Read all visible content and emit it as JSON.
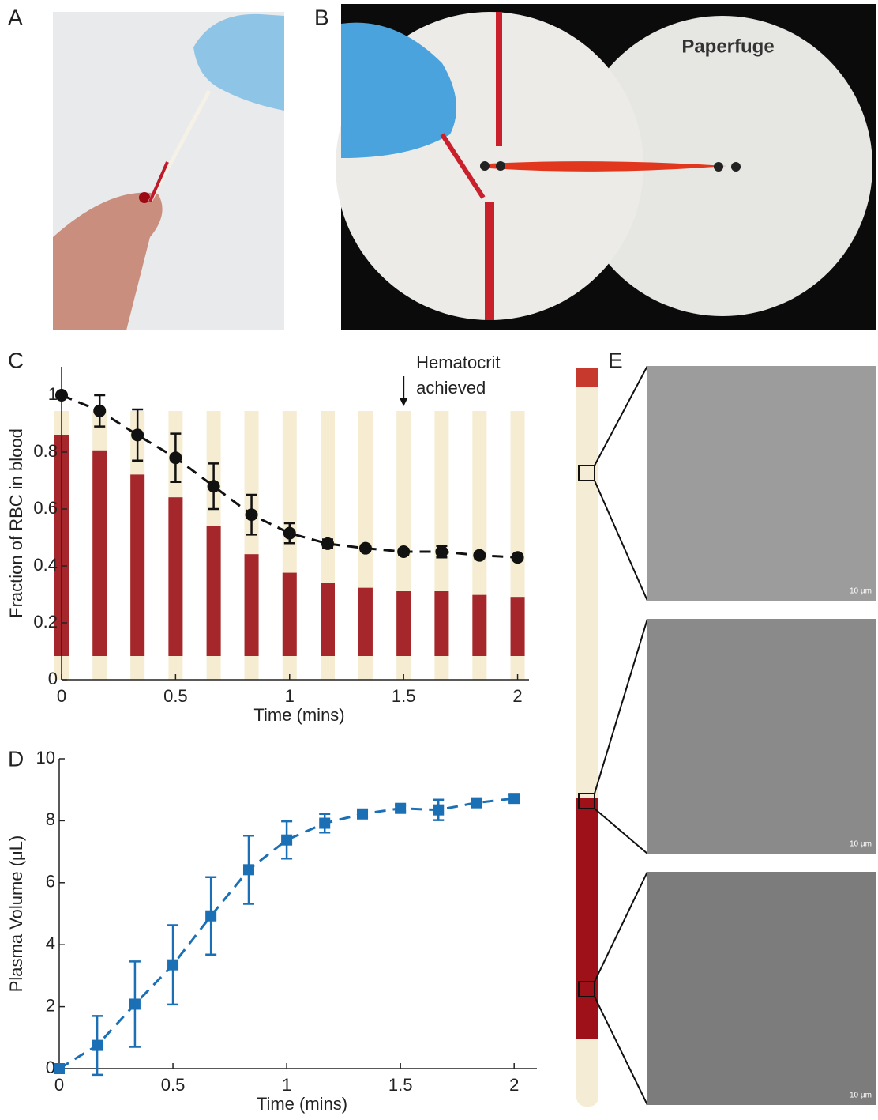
{
  "panel_labels": [
    "A",
    "B",
    "C",
    "D",
    "E"
  ],
  "photo_b": {
    "label": "Paperfuge"
  },
  "micrographs": {
    "scale_bar": "10 µm"
  },
  "chart_data": [
    {
      "type": "line",
      "marker": "circle",
      "linestyle": "dashed",
      "color": "#111111",
      "annotation": [
        "Hematocrit",
        "achieved"
      ],
      "x_label": "Time (mins)",
      "y_label": "Fraction of RBC in blood",
      "x": [
        0,
        0.167,
        0.333,
        0.5,
        0.667,
        0.833,
        1,
        1.167,
        1.333,
        1.5,
        1.667,
        1.833,
        2
      ],
      "values": [
        1.0,
        0.945,
        0.86,
        0.78,
        0.68,
        0.58,
        0.515,
        0.478,
        0.462,
        0.45,
        0.45,
        0.437,
        0.43
      ],
      "errors": [
        0,
        0.055,
        0.09,
        0.085,
        0.08,
        0.07,
        0.035,
        0.015,
        0.01,
        0.01,
        0.02,
        0.01,
        0.01
      ],
      "xlim": [
        0,
        2.05
      ],
      "ylim": [
        0,
        1.1
      ],
      "xticks": [
        0,
        0.5,
        1,
        1.5,
        2
      ],
      "yticks": [
        0,
        0.2,
        0.4,
        0.6,
        0.8,
        1
      ]
    },
    {
      "type": "line",
      "marker": "square",
      "linestyle": "dashed",
      "color": "#1a6fb5",
      "x_label": "Time (mins)",
      "y_label": "Plasma Volume (μL)",
      "x": [
        0,
        0.167,
        0.333,
        0.5,
        0.667,
        0.833,
        1,
        1.167,
        1.333,
        1.5,
        1.667,
        1.833,
        2
      ],
      "values": [
        0,
        0.75,
        2.08,
        3.35,
        4.93,
        6.42,
        7.38,
        7.92,
        8.22,
        8.4,
        8.35,
        8.58,
        8.72
      ],
      "errors": [
        0,
        0.95,
        1.38,
        1.28,
        1.25,
        1.1,
        0.6,
        0.3,
        0.1,
        0.1,
        0.33,
        0.08,
        0.12
      ],
      "xlim": [
        0,
        2.1
      ],
      "ylim": [
        0,
        10
      ],
      "xticks": [
        0,
        0.5,
        1,
        1.5,
        2
      ],
      "yticks": [
        0,
        2,
        4,
        6,
        8,
        10
      ]
    }
  ]
}
